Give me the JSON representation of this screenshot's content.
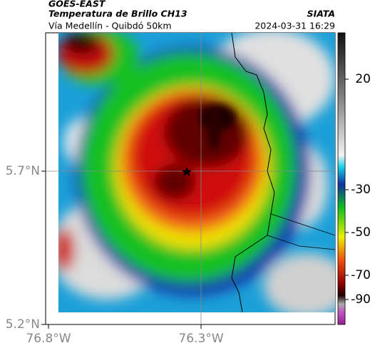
{
  "header": {
    "source": "GOES-EAST",
    "title": "Temperatura de Brillo CH13",
    "agency": "SIATA",
    "route": "Vía Medellín - Quibdó 50km",
    "timestamp": "2024-03-31 16:29"
  },
  "map": {
    "lat_labels": [
      "5.7°N",
      "5.2°N"
    ],
    "lon_labels": [
      "76.8°W",
      "76.3°W"
    ]
  },
  "colorbar": {
    "ticks": [
      "20",
      "-30",
      "-50",
      "-70",
      "-90"
    ]
  }
}
